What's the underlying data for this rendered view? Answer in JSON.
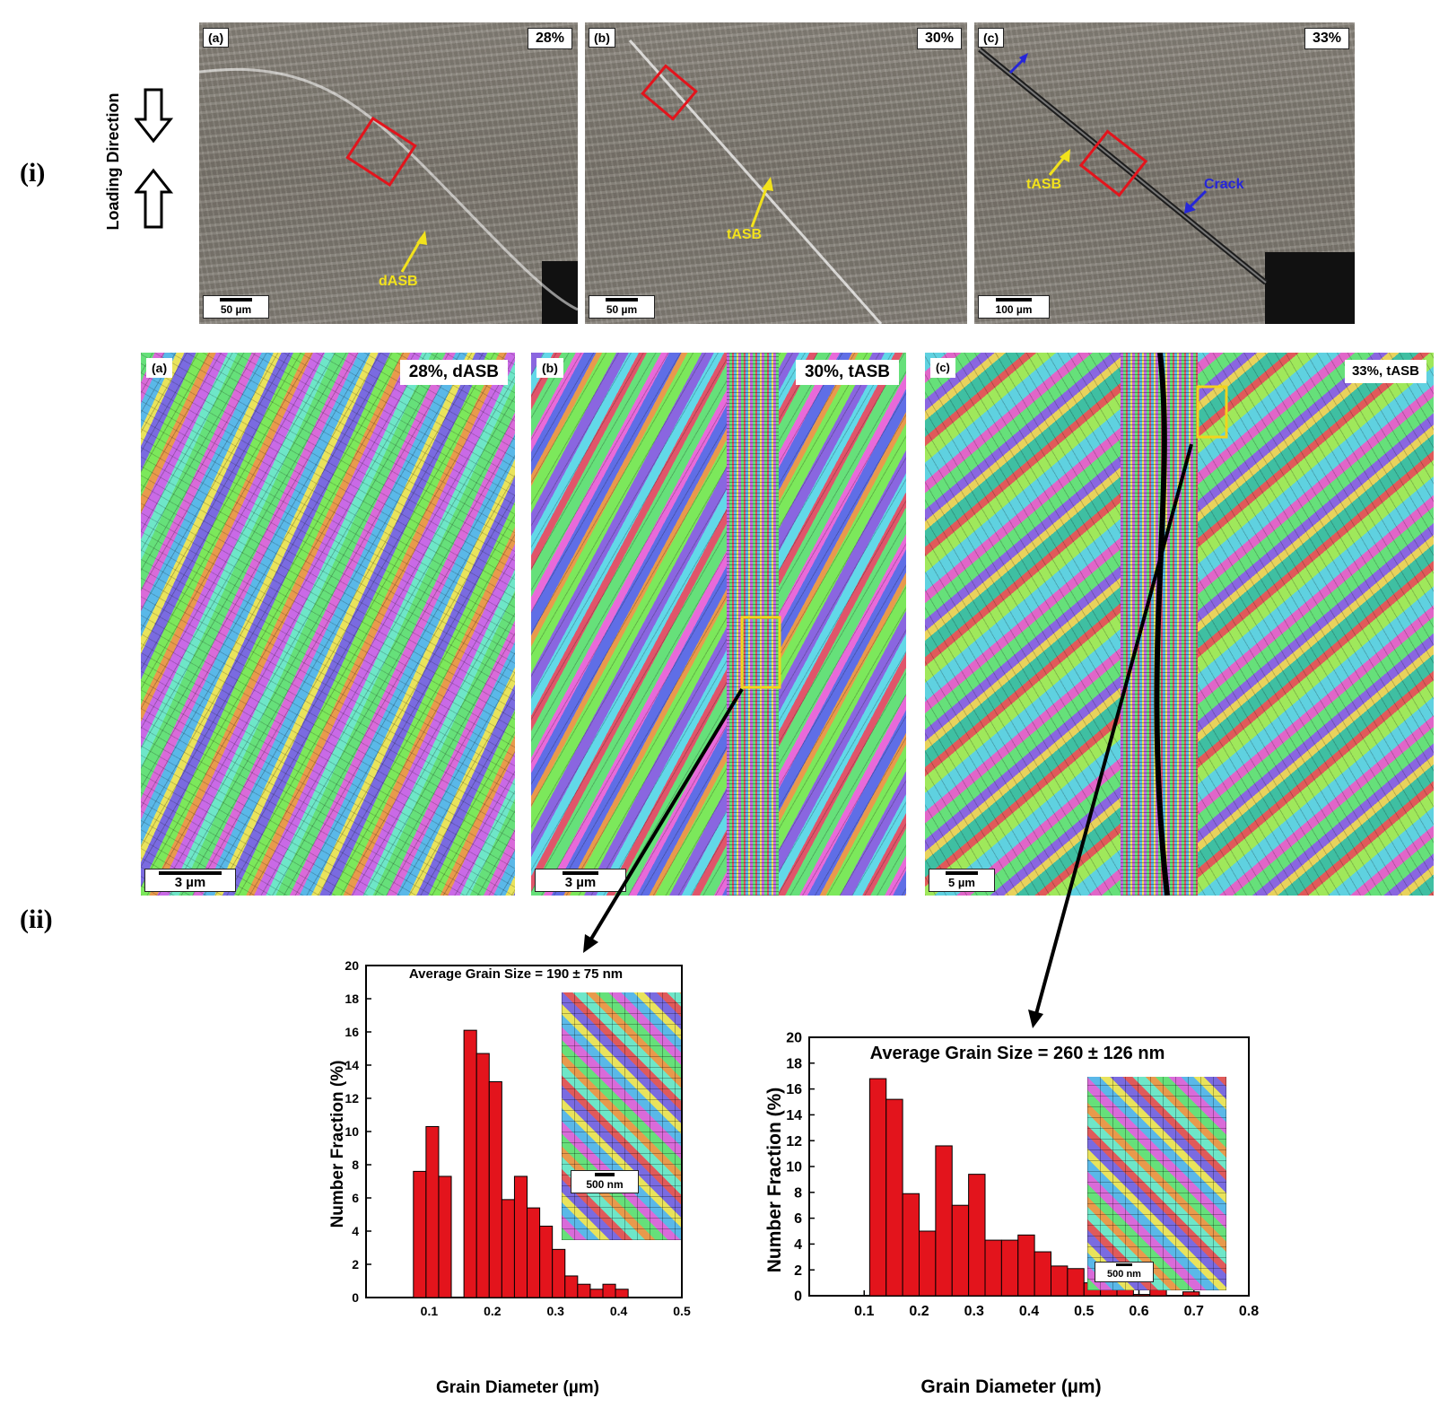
{
  "figure": {
    "row_labels": {
      "i": "(i)",
      "ii": "(ii)"
    },
    "loading_label": "Loading Direction",
    "optical_panels": [
      {
        "label": "(a)",
        "strain": "28%",
        "scale": "50 µm",
        "band_label": "dASB"
      },
      {
        "label": "(b)",
        "strain": "30%",
        "scale": "50 µm",
        "band_label": "tASB"
      },
      {
        "label": "(c)",
        "strain": "33%",
        "scale": "100 µm",
        "band_label": "tASB",
        "crack_label": "Crack"
      }
    ],
    "ebsd_panels": [
      {
        "label": "(a)",
        "tag": "28%, dASB",
        "scale": "3 µm"
      },
      {
        "label": "(b)",
        "tag": "30%, tASB",
        "scale": "3 µm"
      },
      {
        "label": "(c)",
        "tag": "33%, tASB",
        "scale": "5 µm"
      }
    ],
    "colors": {
      "bar": "#e3141c",
      "box_red": "#e3141c",
      "box_yellow": "#f2d21c",
      "arrow_yellow": "#f2e21c",
      "arrow_blue": "#2626d9"
    }
  },
  "chart_data": [
    {
      "type": "bar",
      "title": "Average Grain Size = 190 ± 75 nm",
      "xlabel": "Grain Diameter (µm)",
      "ylabel": "Number Fraction (%)",
      "xlim": [
        0,
        0.5
      ],
      "ylim": [
        0,
        20
      ],
      "xticks": [
        "0.1",
        "0.2",
        "0.3",
        "0.4",
        "0.5"
      ],
      "yticks": [
        "0",
        "2",
        "4",
        "6",
        "8",
        "10",
        "12",
        "14",
        "16",
        "18",
        "20"
      ],
      "bin_width": 0.02,
      "x": [
        0.085,
        0.105,
        0.125,
        0.145,
        0.165,
        0.185,
        0.205,
        0.225,
        0.245,
        0.265,
        0.285,
        0.305,
        0.325,
        0.345,
        0.365,
        0.385,
        0.405,
        0.425,
        0.445
      ],
      "values": [
        7.6,
        10.3,
        7.3,
        0,
        16.1,
        14.7,
        13.0,
        5.9,
        7.3,
        5.4,
        4.3,
        2.9,
        1.3,
        0.8,
        0.5,
        0.8,
        0.5,
        0,
        0
      ],
      "inset_scale": "500 nm"
    },
    {
      "type": "bar",
      "title": "Average Grain Size = 260 ± 126 nm",
      "xlabel": "Grain Diameter (µm)",
      "ylabel": "Number Fraction (%)",
      "xlim": [
        0,
        0.8
      ],
      "ylim": [
        0,
        20
      ],
      "xticks": [
        "0.1",
        "0.2",
        "0.3",
        "0.4",
        "0.5",
        "0.6",
        "0.7",
        "0.8"
      ],
      "yticks": [
        "0",
        "2",
        "4",
        "6",
        "8",
        "10",
        "12",
        "14",
        "16",
        "18",
        "20"
      ],
      "bin_width": 0.03,
      "x": [
        0.125,
        0.155,
        0.185,
        0.215,
        0.245,
        0.275,
        0.305,
        0.335,
        0.365,
        0.395,
        0.425,
        0.455,
        0.485,
        0.515,
        0.545,
        0.575,
        0.605,
        0.635,
        0.665,
        0.695
      ],
      "values": [
        16.8,
        15.2,
        7.9,
        5.0,
        11.6,
        7.0,
        9.4,
        4.3,
        4.3,
        4.7,
        3.4,
        2.3,
        2.1,
        1.0,
        1.8,
        0.6,
        0.1,
        0.8,
        0,
        0.3
      ],
      "inset_scale": "500 nm"
    }
  ]
}
